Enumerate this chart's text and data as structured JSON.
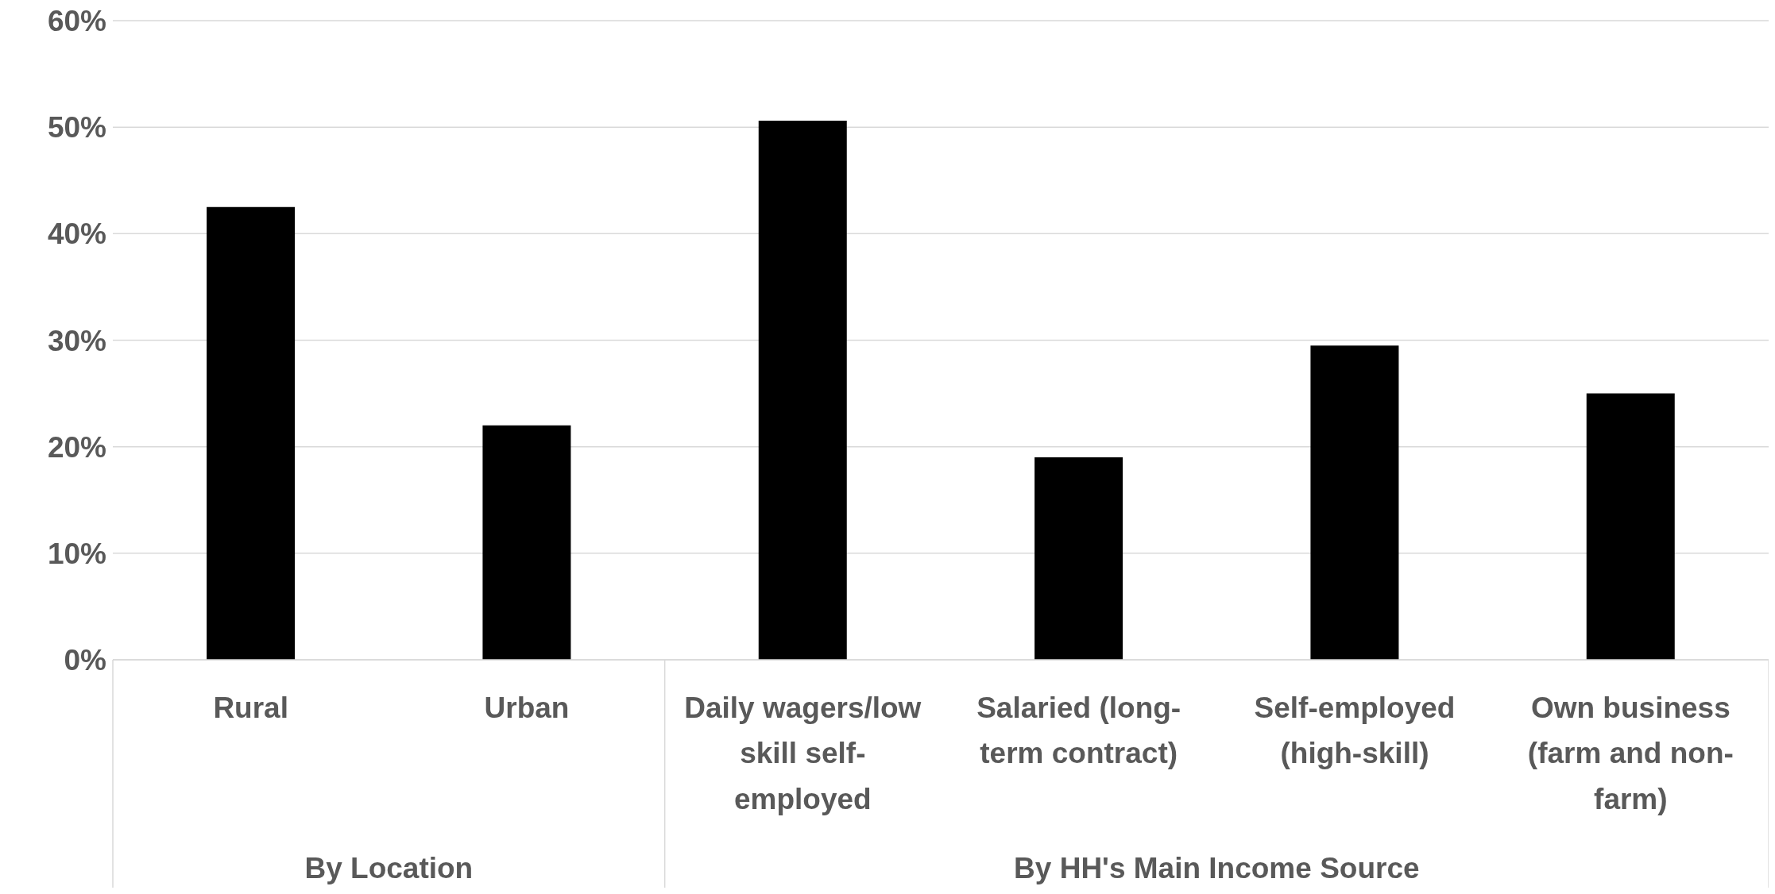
{
  "chart_data": {
    "type": "bar",
    "categories": [
      "Rural",
      "Urban",
      "Daily wagers/low skill self-employed",
      "Salaried (long-term contract)",
      "Self-employed (high-skill)",
      "Own business (farm and non-farm)"
    ],
    "values": [
      42.5,
      22,
      50.6,
      19,
      29.5,
      25
    ],
    "color": "#000000",
    "ylim": [
      0,
      60
    ],
    "yticks": [
      {
        "value": 0,
        "label": "0%"
      },
      {
        "value": 10,
        "label": "10%"
      },
      {
        "value": 20,
        "label": "20%"
      },
      {
        "value": 30,
        "label": "30%"
      },
      {
        "value": 40,
        "label": "40%"
      },
      {
        "value": 50,
        "label": "50%"
      },
      {
        "value": 60,
        "label": "60%"
      }
    ],
    "grid": "y",
    "annotations": [
      "By Location",
      "By HH's Main Income Source"
    ]
  }
}
